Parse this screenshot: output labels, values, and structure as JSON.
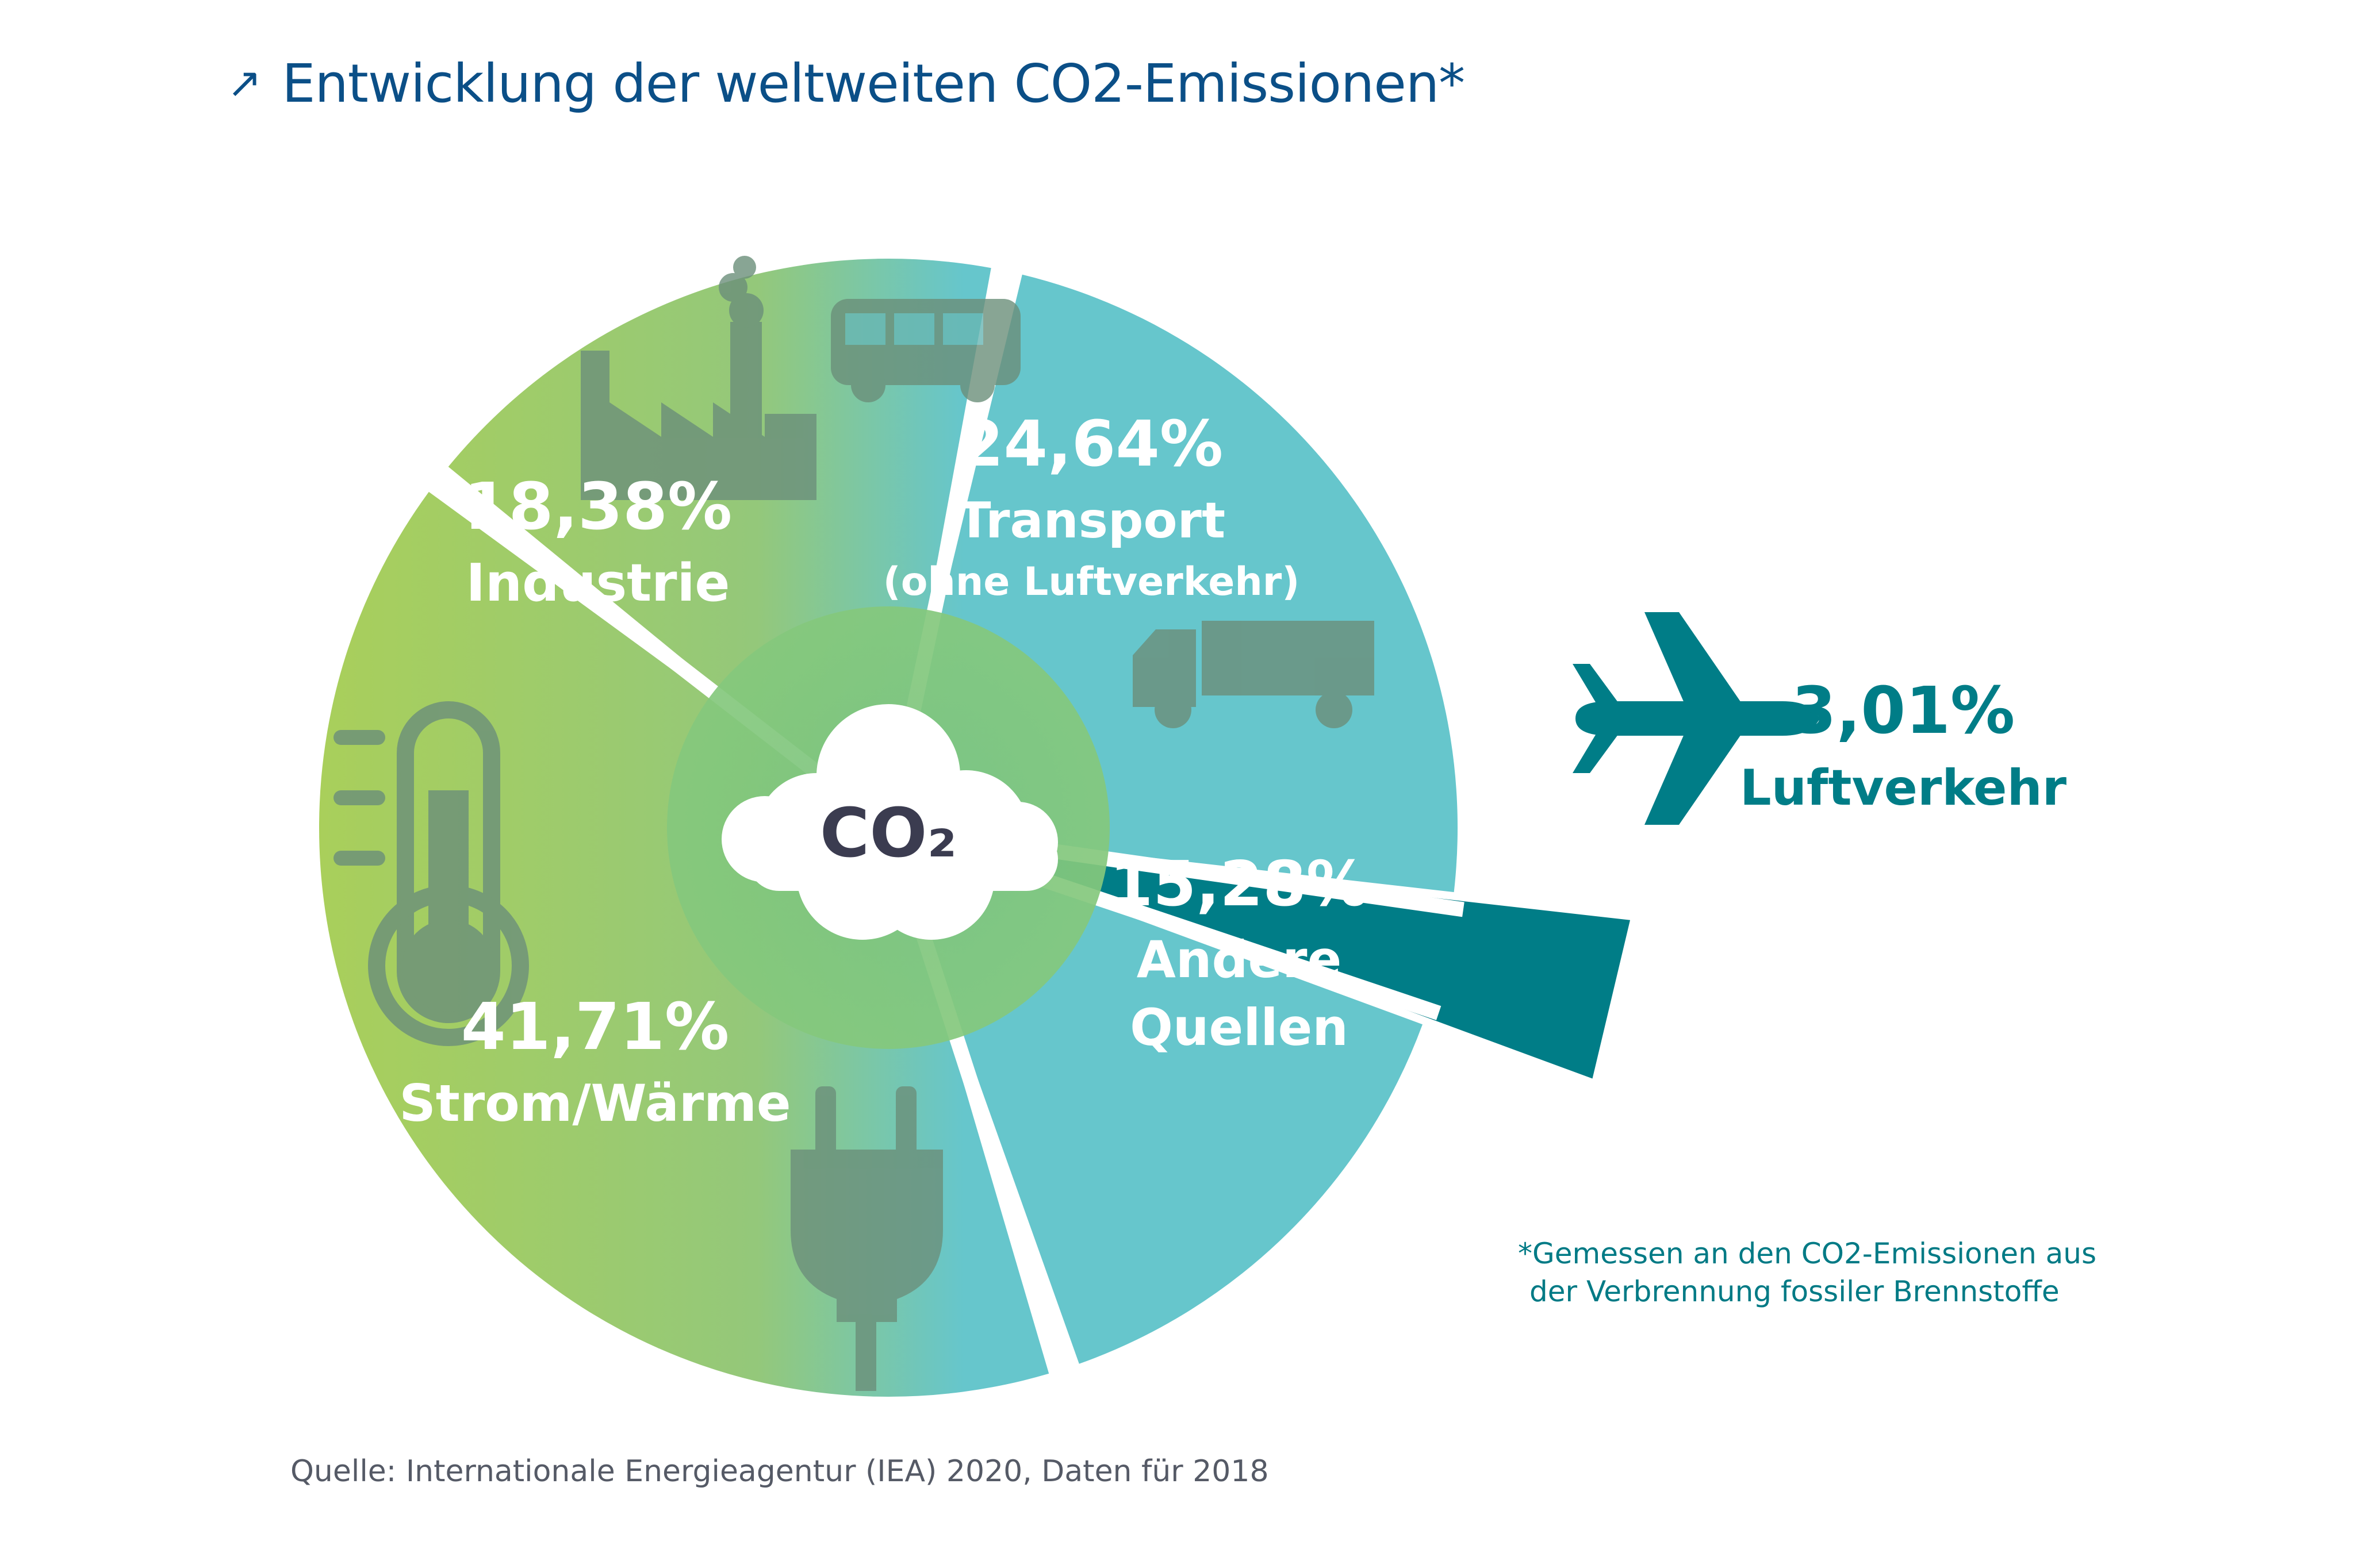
{
  "header": {
    "title": "Entwicklung der weltweiten CO2-Emissionen*"
  },
  "center": {
    "label": "CO₂"
  },
  "chart_data": {
    "type": "pie",
    "title": "Entwicklung der weltweiten CO2-Emissionen*",
    "slices": [
      {
        "label": "Transport",
        "sublabel": "(ohne Luftverkehr)",
        "value": 24.64,
        "value_label": "24,64%",
        "icon": "bus-truck-icon"
      },
      {
        "label": "Luftverkehr",
        "sublabel": "",
        "value": 3.01,
        "value_label": "3,01%",
        "icon": "airplane-icon",
        "exploded": true
      },
      {
        "label": "Andere Quellen",
        "sublabel": "",
        "value": 15.28,
        "value_label": "15,28%",
        "icon": ""
      },
      {
        "label": "Strom/Wärme",
        "sublabel": "",
        "value": 41.71,
        "value_label": "41,71%",
        "icon": "plug-thermometer-icon"
      },
      {
        "label": "Industrie",
        "sublabel": "",
        "value": 18.38,
        "value_label": "18,38%",
        "icon": "factory-icon"
      }
    ],
    "colors": {
      "green": "#a9cf5b",
      "teal": "#66c6cc",
      "dark_teal": "#007d87",
      "icon_gray": "#6b8f7a",
      "title_blue": "#0b4f87"
    }
  },
  "footnote": {
    "line1": "*Gemessen an den CO2-Emissionen aus",
    "line2": "der Verbrennung fossiler Brennstoffe"
  },
  "source": "Quelle: Internationale Energieagentur (IEA) 2020, Daten für 2018"
}
